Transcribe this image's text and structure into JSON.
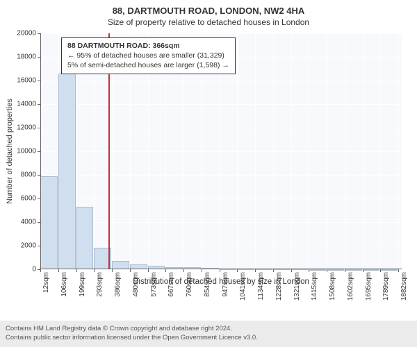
{
  "title": "88, DARTMOUTH ROAD, LONDON, NW2 4HA",
  "subtitle": "Size of property relative to detached houses in London",
  "ylabel": "Number of detached properties",
  "xlabel": "Distribution of detached houses by size in London",
  "chart": {
    "type": "histogram",
    "background_color": "#f7f9fc",
    "grid_color": "#ffffff",
    "axis_color": "#666666",
    "bar_fill": "#d0dff0",
    "bar_stroke": "#aabbcc",
    "marker_color": "#c83232",
    "ylim": [
      0,
      20000
    ],
    "ytick_step": 2000,
    "yticks": [
      0,
      2000,
      4000,
      6000,
      8000,
      10000,
      12000,
      14000,
      16000,
      18000,
      20000
    ],
    "x_min": 12,
    "x_max": 1900,
    "xticks": [
      "12sqm",
      "106sqm",
      "199sqm",
      "293sqm",
      "386sqm",
      "480sqm",
      "573sqm",
      "667sqm",
      "760sqm",
      "854sqm",
      "947sqm",
      "1041sqm",
      "1134sqm",
      "1228sqm",
      "1321sqm",
      "1415sqm",
      "1508sqm",
      "1602sqm",
      "1695sqm",
      "1789sqm",
      "1882sqm"
    ],
    "xtick_values": [
      12,
      106,
      199,
      293,
      386,
      480,
      573,
      667,
      760,
      854,
      947,
      1041,
      1134,
      1228,
      1321,
      1415,
      1508,
      1602,
      1695,
      1789,
      1882
    ],
    "bin_width": 94,
    "bin_starts": [
      12,
      106,
      199,
      293,
      386,
      480,
      573,
      667,
      760,
      854,
      947,
      1041,
      1134,
      1228,
      1321,
      1415,
      1508,
      1602,
      1695,
      1789
    ],
    "values": [
      7900,
      16600,
      5300,
      1800,
      700,
      400,
      300,
      200,
      150,
      100,
      80,
      60,
      50,
      40,
      30,
      20,
      20,
      15,
      10,
      10
    ],
    "marker_x": 366
  },
  "annotation": {
    "title": "88 DARTMOUTH ROAD: 366sqm",
    "line1": "← 95% of detached houses are smaller (31,329)",
    "line2": "5% of semi-detached houses are larger (1,598) →"
  },
  "footer": {
    "line1": "Contains HM Land Registry data © Crown copyright and database right 2024.",
    "line2": "Contains public sector information licensed under the Open Government Licence v3.0."
  },
  "style": {
    "title_fontsize": 13,
    "subtitle_fontsize": 12,
    "axis_label_fontsize": 11,
    "tick_fontsize": 10,
    "anno_fontsize": 10.5,
    "footer_fontsize": 9.5,
    "footer_bg": "#ebebeb"
  }
}
